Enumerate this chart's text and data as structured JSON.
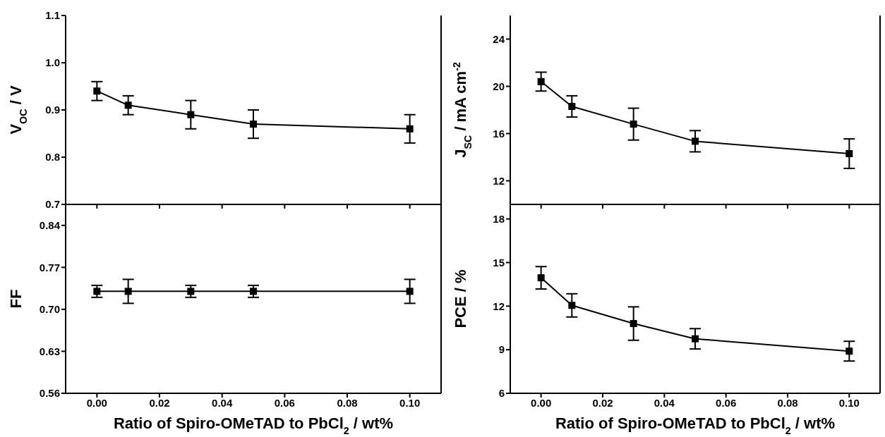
{
  "chart_data": [
    {
      "type": "line",
      "ylabel": "V$_{OC}$ / V",
      "x": [
        0,
        0.01,
        0.03,
        0.05,
        0.1
      ],
      "values": [
        0.94,
        0.91,
        0.89,
        0.87,
        0.86
      ],
      "errors": [
        0.02,
        0.02,
        0.03,
        0.03,
        0.03
      ],
      "color": "#000000",
      "xlim": [
        -0.01,
        0.11
      ],
      "xticks": [
        0,
        0.02,
        0.04,
        0.06,
        0.08,
        0.1
      ],
      "ylim": [
        0.7,
        1.1
      ],
      "yticks": [
        0.7,
        0.8,
        0.9,
        {
          "value": 1,
          "label": "1.0"
        },
        1.1
      ],
      "tick_labels": "y",
      "marker": "square",
      "line_style": "solid"
    },
    {
      "type": "line",
      "ylabel": "J$_{SC}$ / mA cm$^{-2}$",
      "x": [
        0,
        0.01,
        0.03,
        0.05,
        0.1
      ],
      "values": [
        20.4,
        18.3,
        16.8,
        15.35,
        14.3
      ],
      "errors": [
        0.8,
        0.9,
        1.35,
        0.9,
        1.25
      ],
      "color": "#000000",
      "xlim": [
        -0.01,
        0.11
      ],
      "xticks": [
        0,
        0.02,
        0.04,
        0.06,
        0.08,
        0.1
      ],
      "ylim": [
        10,
        26
      ],
      "yticks": [
        12,
        16,
        20,
        24
      ],
      "tick_labels": "y",
      "marker": "square",
      "line_style": "solid"
    },
    {
      "type": "line",
      "ylabel": "FF",
      "xlabel": "Ratio of Spiro-OMeTAD to PbCl$_{2}$ / wt%",
      "x": [
        0,
        0.01,
        0.03,
        0.05,
        0.1
      ],
      "values": [
        0.73,
        0.73,
        0.73,
        0.73,
        0.73
      ],
      "errors": [
        0.01,
        0.02,
        0.01,
        0.01,
        0.02
      ],
      "color": "#000000",
      "xlim": [
        -0.01,
        0.11
      ],
      "xticks": [
        {
          "value": 0,
          "label": "0.00"
        },
        {
          "value": 0.02,
          "label": "0.02"
        },
        {
          "value": 0.04,
          "label": "0.04"
        },
        {
          "value": 0.06,
          "label": "0.06"
        },
        {
          "value": 0.08,
          "label": "0.08"
        },
        {
          "value": 0.1,
          "label": "0.10"
        }
      ],
      "ylim": [
        0.56,
        0.875
      ],
      "yticks": [
        0.56,
        0.63,
        {
          "value": 0.7,
          "label": "0.70"
        },
        0.77,
        0.84
      ],
      "marker": "square",
      "line_style": "solid"
    },
    {
      "type": "line",
      "ylabel": "PCE / %",
      "xlabel": "Ratio of Spiro-OMeTAD to PbCl$_{2}$ / wt%",
      "x": [
        0,
        0.01,
        0.03,
        0.05,
        0.1
      ],
      "values": [
        13.95,
        12.05,
        10.8,
        9.75,
        8.9
      ],
      "errors": [
        0.77,
        0.8,
        1.15,
        0.7,
        0.68
      ],
      "color": "#000000",
      "xlim": [
        -0.01,
        0.11
      ],
      "xticks": [
        {
          "value": 0,
          "label": "0.00"
        },
        {
          "value": 0.02,
          "label": "0.02"
        },
        {
          "value": 0.04,
          "label": "0.04"
        },
        {
          "value": 0.06,
          "label": "0.06"
        },
        {
          "value": 0.08,
          "label": "0.08"
        },
        {
          "value": 0.1,
          "label": "0.10"
        }
      ],
      "ylim": [
        6,
        19
      ],
      "yticks": [
        6,
        9,
        12,
        15,
        18
      ],
      "marker": "square",
      "line_style": "solid"
    }
  ]
}
